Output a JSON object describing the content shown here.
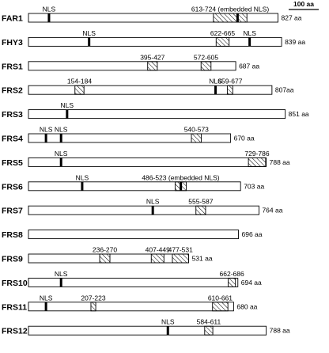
{
  "scale_bar": {
    "label": "100 aa",
    "length_aa": 100
  },
  "proteins": [
    {
      "name": "FAR1",
      "length": 827,
      "length_label": "827 aa",
      "nls": [
        {
          "pos": 68,
          "label": "NLS"
        }
      ],
      "domains": [
        {
          "start": 613,
          "end": 724,
          "label": "613-724 (embedded NLS)",
          "embedded_nls": 693
        }
      ]
    },
    {
      "name": "FHY3",
      "length": 839,
      "length_label": "839 aa",
      "nls": [
        {
          "pos": 201,
          "label": "NLS"
        },
        {
          "pos": 733,
          "label": "NLS"
        }
      ],
      "domains": [
        {
          "start": 622,
          "end": 665,
          "label": "622-665"
        }
      ]
    },
    {
      "name": "FRS1",
      "length": 687,
      "length_label": "687 aa",
      "nls": [],
      "domains": [
        {
          "start": 395,
          "end": 427,
          "label": "395-427"
        },
        {
          "start": 572,
          "end": 605,
          "label": "572-605"
        }
      ]
    },
    {
      "name": "FRS2",
      "length": 807,
      "length_label": "807aa",
      "nls": [
        {
          "pos": 620,
          "label": "NLS"
        }
      ],
      "domains": [
        {
          "start": 154,
          "end": 184,
          "label": "154-184"
        },
        {
          "start": 659,
          "end": 677,
          "label": "659-677"
        }
      ]
    },
    {
      "name": "FRS3",
      "length": 851,
      "length_label": "851 aa",
      "nls": [
        {
          "pos": 128,
          "label": "NLS"
        }
      ],
      "domains": []
    },
    {
      "name": "FRS4",
      "length": 670,
      "length_label": "670 aa",
      "nls": [
        {
          "pos": 58,
          "label": "NLS"
        },
        {
          "pos": 108,
          "label": "NLS"
        }
      ],
      "domains": [
        {
          "start": 540,
          "end": 573,
          "label": "540-573"
        }
      ]
    },
    {
      "name": "FRS5",
      "length": 788,
      "length_label": "788 aa",
      "nls": [
        {
          "pos": 108,
          "label": "NLS"
        }
      ],
      "domains": [
        {
          "start": 729,
          "end": 786,
          "label": "729-786"
        }
      ]
    },
    {
      "name": "FRS6",
      "length": 703,
      "length_label": "703 aa",
      "nls": [
        {
          "pos": 178,
          "label": "NLS"
        }
      ],
      "domains": [
        {
          "start": 486,
          "end": 523,
          "label": "486-523 (embedded NLS)",
          "embedded_nls": 505
        }
      ]
    },
    {
      "name": "FRS7",
      "length": 764,
      "length_label": "764 aa",
      "nls": [
        {
          "pos": 412,
          "label": "NLS"
        }
      ],
      "domains": [
        {
          "start": 555,
          "end": 587,
          "label": "555-587"
        }
      ]
    },
    {
      "name": "FRS8",
      "length": 696,
      "length_label": "696 aa",
      "nls": [],
      "domains": []
    },
    {
      "name": "FRS9",
      "length": 531,
      "length_label": "531 aa",
      "nls": [],
      "domains": [
        {
          "start": 236,
          "end": 270,
          "label": "236-270"
        },
        {
          "start": 407,
          "end": 449,
          "label": "407-449"
        },
        {
          "start": 477,
          "end": 531,
          "label": "477-531"
        }
      ]
    },
    {
      "name": "FRS10",
      "length": 694,
      "length_label": "694 aa",
      "nls": [
        {
          "pos": 108,
          "label": "NLS"
        }
      ],
      "domains": [
        {
          "start": 662,
          "end": 686,
          "label": "662-686"
        }
      ]
    },
    {
      "name": "FRS11",
      "length": 680,
      "length_label": "680 aa",
      "nls": [
        {
          "pos": 58,
          "label": "NLS"
        }
      ],
      "domains": [
        {
          "start": 207,
          "end": 223,
          "label": "207-223"
        },
        {
          "start": 610,
          "end": 661,
          "label": "610-661"
        }
      ]
    },
    {
      "name": "FRS12",
      "length": 788,
      "length_label": "788 aa",
      "nls": [
        {
          "pos": 462,
          "label": "NLS"
        }
      ],
      "domains": [
        {
          "start": 584,
          "end": 611,
          "label": "584-611"
        }
      ]
    }
  ]
}
